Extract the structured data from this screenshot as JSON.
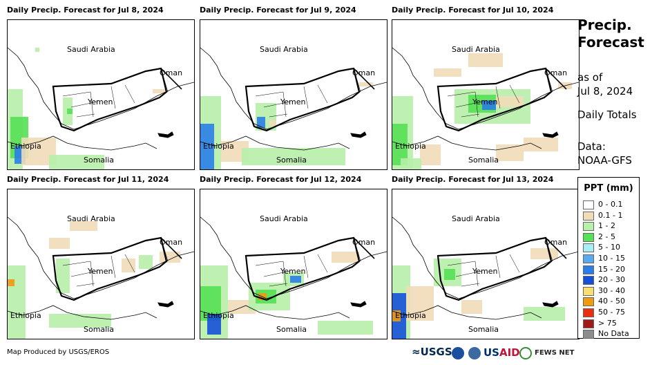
{
  "panels": [
    {
      "title": "Daily Precip. Forecast for Jul 8, 2024",
      "labels": {
        "saudi": "Saudi Arabia",
        "oman": "Oman",
        "yemen": "Yemen",
        "ethiopia": "Ethiopia",
        "somalia": "Somalia"
      }
    },
    {
      "title": "Daily Precip. Forecast for Jul 9, 2024",
      "labels": {
        "saudi": "Saudi Arabia",
        "oman": "Oman",
        "yemen": "Yemen",
        "ethiopia": "Ethiopia",
        "somalia": "Somalia"
      }
    },
    {
      "title": "Daily Precip. Forecast for Jul 10, 2024",
      "labels": {
        "saudi": "Saudi Arabia",
        "oman": "Oman",
        "yemen": "Yemen",
        "ethiopia": "Ethiopia",
        "somalia": "Somalia"
      }
    },
    {
      "title": "Daily Precip. Forecast for Jul 11, 2024",
      "labels": {
        "saudi": "Saudi Arabia",
        "oman": "Oman",
        "yemen": "Yemen",
        "ethiopia": "Ethiopia",
        "somalia": "Somalia"
      }
    },
    {
      "title": "Daily Precip. Forecast for Jul 12, 2024",
      "labels": {
        "saudi": "Saudi Arabia",
        "oman": "Oman",
        "yemen": "Yemen",
        "ethiopia": "Ethiopia",
        "somalia": "Somalia"
      }
    },
    {
      "title": "Daily Precip. Forecast for Jul 13, 2024",
      "labels": {
        "saudi": "Saudi Arabia",
        "oman": "Oman",
        "yemen": "Yemen",
        "ethiopia": "Ethiopia",
        "somalia": "Somalia"
      }
    }
  ],
  "sidebar": {
    "title_line1": "Precip.",
    "title_line2": "Forecast",
    "asof_line1": "as of",
    "asof_line2": "Jul 8, 2024",
    "totals": "Daily Totals",
    "data_line1": "Data:",
    "data_line2": "NOAA-GFS"
  },
  "legend": {
    "title": "PPT (mm)",
    "items": [
      {
        "label": "0 - 0.1",
        "color": "#ffffff"
      },
      {
        "label": "0.1 - 1",
        "color": "#f1dcb8"
      },
      {
        "label": "1 - 2",
        "color": "#b7f0a8"
      },
      {
        "label": "2 - 5",
        "color": "#55e055"
      },
      {
        "label": "5 - 10",
        "color": "#a8ecf4"
      },
      {
        "label": "10 - 15",
        "color": "#5aa8f0"
      },
      {
        "label": "15 - 20",
        "color": "#2a7ee8"
      },
      {
        "label": "20 - 30",
        "color": "#1450d8"
      },
      {
        "label": "30 - 40",
        "color": "#f8e070"
      },
      {
        "label": "40 - 50",
        "color": "#f09a10"
      },
      {
        "label": "50 - 75",
        "color": "#e83010"
      },
      {
        "label": "> 75",
        "color": "#a01818"
      },
      {
        "label": "No Data",
        "color": "#8c8c8c"
      }
    ]
  },
  "footer": {
    "credit": "Map Produced by USGS/EROS",
    "usgs": "≈USGS",
    "usaid_a": "US",
    "usaid_b": "AID",
    "fews": "FEWS NET"
  }
}
